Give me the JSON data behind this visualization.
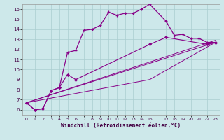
{
  "xlabel": "Windchill (Refroidissement éolien,°C)",
  "bg_color": "#cde8ea",
  "grid_color": "#aacdd0",
  "line_color": "#880088",
  "xlim": [
    -0.5,
    23.5
  ],
  "ylim": [
    5.5,
    16.5
  ],
  "xticks": [
    0,
    1,
    2,
    3,
    4,
    5,
    6,
    7,
    8,
    9,
    10,
    11,
    12,
    13,
    14,
    15,
    17,
    18,
    19,
    20,
    21,
    22,
    23
  ],
  "yticks": [
    6,
    7,
    8,
    9,
    10,
    11,
    12,
    13,
    14,
    15,
    16
  ],
  "series_main_x": [
    0,
    1,
    2,
    3,
    4,
    5,
    6,
    7,
    8,
    9,
    10,
    11,
    12,
    13,
    14,
    15,
    17,
    18,
    19,
    20,
    21,
    22,
    23
  ],
  "series_main_y": [
    6.7,
    6.0,
    6.1,
    7.9,
    8.2,
    11.7,
    11.9,
    13.9,
    14.0,
    14.4,
    15.7,
    15.4,
    15.6,
    15.6,
    16.0,
    16.5,
    14.8,
    13.4,
    13.5,
    13.1,
    13.1,
    12.7,
    12.7
  ],
  "series_diamond_x": [
    0,
    1,
    2,
    3,
    4,
    5,
    6,
    15,
    17,
    22,
    23
  ],
  "series_diamond_y": [
    6.7,
    6.0,
    6.1,
    7.9,
    8.2,
    9.5,
    9.0,
    12.5,
    13.2,
    12.5,
    12.7
  ],
  "line1_x": [
    0,
    23
  ],
  "line1_y": [
    6.7,
    12.7
  ],
  "line2_x": [
    0,
    23
  ],
  "line2_y": [
    6.7,
    12.7
  ],
  "line3_x": [
    0,
    15,
    23
  ],
  "line3_y": [
    6.7,
    9.0,
    12.7
  ]
}
